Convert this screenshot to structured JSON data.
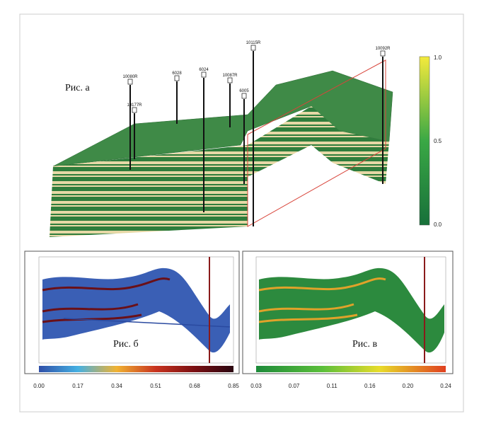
{
  "panel_a": {
    "label": "Рис. а",
    "colorbar_ticks": [
      "1.0",
      "0.5",
      "0.0"
    ],
    "wells": [
      "10080R",
      "10177R",
      "6028",
      "6024",
      "10087R",
      "6005",
      "10115R",
      "10092R"
    ]
  },
  "panel_b": {
    "label": "Рис. б",
    "colorbar_ticks": [
      "0.00",
      "0.17",
      "0.34",
      "0.51",
      "0.68",
      "0.85"
    ]
  },
  "panel_c": {
    "label": "Рис. в",
    "colorbar_ticks": [
      "0.03",
      "0.07",
      "0.11",
      "0.16",
      "0.20",
      "0.24"
    ]
  }
}
